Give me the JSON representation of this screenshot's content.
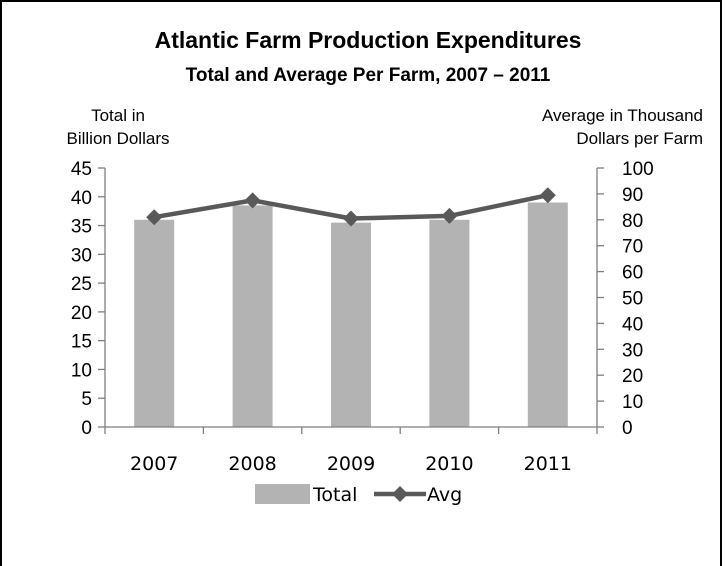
{
  "chart_data": {
    "type": "bar+line",
    "title": "Atlantic Farm Production Expenditures",
    "subtitle": "Total and Average Per Farm, 2007 – 2011",
    "ylabel_left": [
      "Total in",
      "Billion Dollars"
    ],
    "ylabel_right": [
      "Average in Thousand",
      "Dollars per Farm"
    ],
    "categories": [
      "2007",
      "2008",
      "2009",
      "2010",
      "2011"
    ],
    "ylim_left": [
      0,
      45
    ],
    "ylim_right": [
      0,
      100
    ],
    "yticks_left": [
      "0",
      "5",
      "10",
      "15",
      "20",
      "25",
      "30",
      "35",
      "40",
      "45"
    ],
    "yticks_right": [
      "0",
      "10",
      "20",
      "30",
      "40",
      "50",
      "60",
      "70",
      "80",
      "90",
      "100"
    ],
    "series": [
      {
        "name": "Total",
        "type": "bar",
        "axis": "left",
        "values": [
          36,
          38.5,
          35.5,
          36,
          39
        ],
        "color": "#b3b3b3"
      },
      {
        "name": "Avg",
        "type": "line",
        "axis": "right",
        "values": [
          81,
          87.5,
          80.5,
          81.5,
          89.5
        ],
        "color": "#595959"
      }
    ],
    "legend_position": "bottom",
    "grid": false
  }
}
